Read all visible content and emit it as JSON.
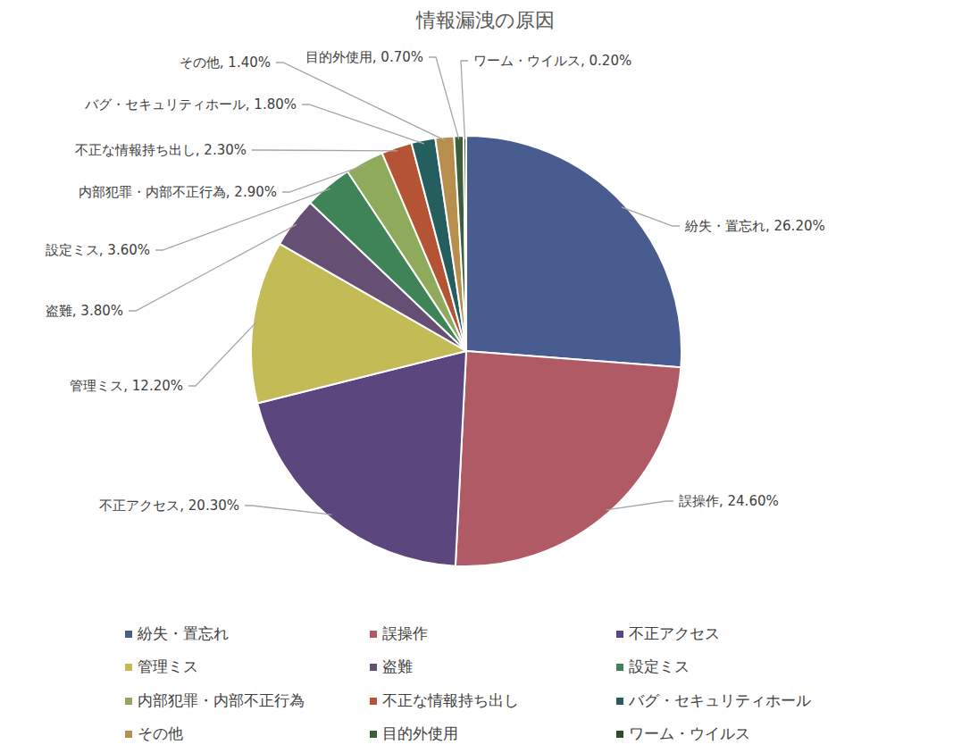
{
  "chart_data": {
    "type": "pie",
    "title": "情報漏洩の原因",
    "categories": [
      "紛失・置忘れ",
      "誤操作",
      "不正アクセス",
      "管理ミス",
      "盗難",
      "設定ミス",
      "内部犯罪・内部不正行為",
      "不正な情報持ち出し",
      "バグ・セキュリティホール",
      "その他",
      "目的外使用",
      "ワーム・ウイルス"
    ],
    "values": [
      26.2,
      24.6,
      20.3,
      12.2,
      3.8,
      3.6,
      2.9,
      2.3,
      1.8,
      1.4,
      0.7,
      0.2
    ],
    "value_labels": [
      "紛失・置忘れ, 26.20%",
      "誤操作, 24.60%",
      "不正アクセス, 20.30%",
      "管理ミス, 12.20%",
      "盗難, 3.80%",
      "設定ミス, 3.60%",
      "内部犯罪・内部不正行為, 2.90%",
      "不正な情報持ち出し, 2.30%",
      "バグ・セキュリティホール, 1.80%",
      "その他, 1.40%",
      "目的外使用, 0.70%",
      "ワーム・ウイルス, 0.20%"
    ],
    "colors": [
      "#485c8f",
      "#b05a66",
      "#5b477d",
      "#c3bb55",
      "#654f73",
      "#3e8456",
      "#8faa5b",
      "#b55434",
      "#245e5f",
      "#b78e4d",
      "#3d5e3a",
      "#2e4f2a"
    ],
    "data_labels": true,
    "legend": "bottom"
  }
}
